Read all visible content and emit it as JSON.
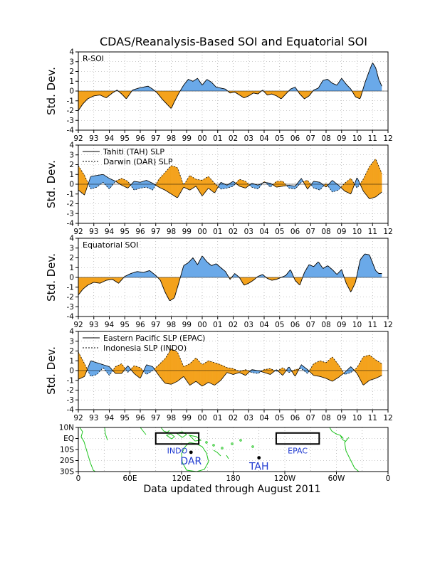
{
  "title": "CDAS/Reanalysis-Based SOI and Equatorial SOI",
  "footer": "Data updated through August 2011",
  "colors": {
    "positive": "#6aa9e9",
    "negative": "#f4a21c",
    "grid": "#999999",
    "land": "#1fc41f",
    "label": "#1f3ad1"
  },
  "chart_data": [
    {
      "type": "area",
      "panel_label": "R-SOI",
      "ylabel": "Std. Dev.",
      "ylim": [
        -4,
        4
      ],
      "yticks": [
        "4",
        "3",
        "2",
        "1",
        "0",
        "-1",
        "-2",
        "-3",
        "-4"
      ],
      "xlim": [
        1992.0,
        2012.0
      ],
      "xticks": [
        "92",
        "93",
        "94",
        "95",
        "96",
        "97",
        "98",
        "99",
        "00",
        "01",
        "02",
        "03",
        "04",
        "05",
        "06",
        "07",
        "08",
        "09",
        "10",
        "11",
        "12"
      ],
      "grid": true,
      "series": [
        {
          "x": [
            1992.0,
            1992.3,
            1992.6,
            1993.0,
            1993.4,
            1993.8,
            1994.2,
            1994.5,
            1994.8,
            1995.1,
            1995.5,
            1995.9,
            1996.2,
            1996.5,
            1996.8,
            1997.1,
            1997.4,
            1997.7,
            1998.0,
            1998.2,
            1998.5,
            1998.8,
            1999.1,
            1999.4,
            1999.7,
            2000.0,
            2000.3,
            2000.6,
            2000.9,
            2001.2,
            2001.5,
            2001.8,
            2002.1,
            2002.4,
            2002.7,
            2003.0,
            2003.3,
            2003.6,
            2003.9,
            2004.2,
            2004.5,
            2004.8,
            2005.1,
            2005.4,
            2005.7,
            2006.0,
            2006.3,
            2006.6,
            2006.9,
            2007.2,
            2007.5,
            2007.8,
            2008.1,
            2008.4,
            2008.7,
            2009.0,
            2009.3,
            2009.6,
            2009.9,
            2010.2,
            2010.5,
            2010.8,
            2011.0,
            2011.2,
            2011.4,
            2011.6
          ],
          "values": [
            -2.0,
            -1.3,
            -0.8,
            -0.5,
            -0.4,
            -0.7,
            -0.2,
            0.1,
            -0.3,
            -0.8,
            0.1,
            0.3,
            0.4,
            0.5,
            0.2,
            -0.2,
            -0.8,
            -1.3,
            -1.8,
            -1.1,
            -0.2,
            0.6,
            1.2,
            1.0,
            1.3,
            0.6,
            1.2,
            0.9,
            0.4,
            0.3,
            0.2,
            -0.2,
            -0.1,
            -0.4,
            -0.7,
            -0.5,
            -0.2,
            -0.3,
            0.1,
            -0.4,
            -0.3,
            -0.5,
            -0.8,
            -0.3,
            0.2,
            0.4,
            -0.3,
            -0.8,
            -0.5,
            0.1,
            0.3,
            1.1,
            1.2,
            0.8,
            0.6,
            1.3,
            0.7,
            0.2,
            -0.6,
            -0.8,
            0.8,
            2.1,
            2.9,
            2.4,
            1.2,
            0.5
          ]
        }
      ]
    },
    {
      "type": "area",
      "ylabel": "Std. Dev.",
      "ylim": [
        -4,
        4
      ],
      "yticks": [
        "4",
        "3",
        "2",
        "1",
        "0",
        "-1",
        "-2",
        "-3",
        "-4"
      ],
      "xlim": [
        1992.0,
        2012.0
      ],
      "xticks": [
        "92",
        "93",
        "94",
        "95",
        "96",
        "97",
        "98",
        "99",
        "00",
        "01",
        "02",
        "03",
        "04",
        "05",
        "06",
        "07",
        "08",
        "09",
        "10",
        "11",
        "12"
      ],
      "grid": true,
      "legend": {
        "position": "top-left"
      },
      "series": [
        {
          "name": "Tahiti (TAH) SLP",
          "line": "solid",
          "x": [
            1992.0,
            1992.4,
            1992.8,
            1993.2,
            1993.6,
            1994.0,
            1994.4,
            1994.8,
            1995.2,
            1995.6,
            1996.0,
            1996.4,
            1996.8,
            1997.2,
            1997.6,
            1998.0,
            1998.4,
            1998.8,
            1999.2,
            1999.6,
            2000.0,
            2000.4,
            2000.8,
            2001.2,
            2001.6,
            2002.0,
            2002.4,
            2002.8,
            2003.2,
            2003.6,
            2004.0,
            2004.4,
            2004.8,
            2005.2,
            2005.6,
            2006.0,
            2006.4,
            2006.8,
            2007.2,
            2007.6,
            2008.0,
            2008.4,
            2008.8,
            2009.2,
            2009.6,
            2010.0,
            2010.4,
            2010.8,
            2011.2,
            2011.6
          ],
          "values": [
            -0.6,
            -1.1,
            0.8,
            0.9,
            1.0,
            0.6,
            0.3,
            -0.1,
            -0.4,
            0.3,
            0.2,
            0.4,
            0.1,
            -0.3,
            -0.6,
            -1.0,
            -1.4,
            -0.3,
            -0.6,
            -0.2,
            -1.2,
            -0.4,
            -0.9,
            0.2,
            -0.1,
            0.3,
            -0.2,
            -0.4,
            0.1,
            -0.1,
            0.2,
            0.1,
            -0.3,
            -0.2,
            -0.1,
            -0.2,
            0.6,
            -0.5,
            0.3,
            0.2,
            -0.3,
            0.4,
            -0.1,
            -0.7,
            -1.0,
            0.7,
            -0.7,
            -1.5,
            -1.3,
            -0.8
          ]
        },
        {
          "name": "Darwin (DAR) SLP",
          "line": "dashed",
          "x": [
            1992.0,
            1992.4,
            1992.8,
            1993.2,
            1993.6,
            1994.0,
            1994.4,
            1994.8,
            1995.2,
            1995.6,
            1996.0,
            1996.4,
            1996.8,
            1997.2,
            1997.6,
            1998.0,
            1998.4,
            1998.8,
            1999.2,
            1999.6,
            2000.0,
            2000.4,
            2000.8,
            2001.2,
            2001.6,
            2002.0,
            2002.4,
            2002.8,
            2003.2,
            2003.6,
            2004.0,
            2004.4,
            2004.8,
            2005.2,
            2005.6,
            2006.0,
            2006.4,
            2006.8,
            2007.2,
            2007.6,
            2008.0,
            2008.4,
            2008.8,
            2009.2,
            2009.6,
            2010.0,
            2010.4,
            2010.8,
            2011.2,
            2011.6
          ],
          "values": [
            1.9,
            0.9,
            -0.5,
            -0.3,
            0.2,
            -0.5,
            0.3,
            0.6,
            0.3,
            -0.6,
            -0.4,
            -0.3,
            -0.6,
            0.5,
            1.2,
            1.9,
            1.7,
            -0.1,
            0.9,
            0.5,
            0.4,
            0.8,
            0.1,
            -0.5,
            -0.4,
            -0.2,
            0.5,
            0.3,
            -0.3,
            -0.5,
            0.3,
            -0.3,
            0.3,
            0.3,
            -0.4,
            -0.5,
            0.2,
            0.4,
            -0.4,
            -0.6,
            0.1,
            -0.8,
            -0.6,
            0.1,
            0.6,
            -0.4,
            0.5,
            1.8,
            2.6,
            1.1
          ]
        }
      ]
    },
    {
      "type": "area",
      "panel_label": "Equatorial SOI",
      "ylabel": "Std. Dev.",
      "ylim": [
        -4,
        4
      ],
      "yticks": [
        "4",
        "3",
        "2",
        "1",
        "0",
        "-1",
        "-2",
        "-3",
        "-4"
      ],
      "xlim": [
        1992.0,
        2012.0
      ],
      "xticks": [
        "92",
        "93",
        "94",
        "95",
        "96",
        "97",
        "98",
        "99",
        "00",
        "01",
        "02",
        "03",
        "04",
        "05",
        "06",
        "07",
        "08",
        "09",
        "10",
        "11",
        "12"
      ],
      "grid": true,
      "series": [
        {
          "x": [
            1992.0,
            1992.3,
            1992.6,
            1993.0,
            1993.4,
            1993.8,
            1994.2,
            1994.6,
            1995.0,
            1995.4,
            1995.8,
            1996.2,
            1996.6,
            1997.0,
            1997.3,
            1997.6,
            1997.9,
            1998.2,
            1998.5,
            1998.8,
            1999.1,
            1999.4,
            1999.7,
            2000.0,
            2000.3,
            2000.6,
            2000.9,
            2001.2,
            2001.5,
            2001.8,
            2002.1,
            2002.4,
            2002.7,
            2003.0,
            2003.3,
            2003.6,
            2003.9,
            2004.2,
            2004.5,
            2004.8,
            2005.1,
            2005.4,
            2005.7,
            2006.0,
            2006.3,
            2006.6,
            2006.9,
            2007.2,
            2007.5,
            2007.8,
            2008.1,
            2008.4,
            2008.7,
            2009.0,
            2009.3,
            2009.6,
            2009.9,
            2010.2,
            2010.5,
            2010.8,
            2011.0,
            2011.2,
            2011.4,
            2011.6
          ],
          "values": [
            -1.8,
            -1.2,
            -0.8,
            -0.5,
            -0.6,
            -0.3,
            -0.2,
            -0.6,
            0.1,
            0.4,
            0.6,
            0.5,
            0.7,
            0.2,
            -0.3,
            -1.5,
            -2.4,
            -2.1,
            -0.5,
            1.2,
            1.5,
            2.0,
            1.3,
            2.2,
            1.6,
            1.2,
            1.4,
            1.0,
            0.6,
            -0.2,
            0.4,
            0.0,
            -0.8,
            -0.6,
            -0.3,
            0.1,
            0.3,
            -0.1,
            -0.3,
            -0.2,
            0.0,
            0.2,
            0.8,
            -0.3,
            -0.8,
            0.5,
            1.3,
            1.1,
            1.6,
            0.9,
            1.2,
            0.8,
            0.3,
            0.8,
            -0.6,
            -1.5,
            -0.5,
            1.8,
            2.4,
            2.3,
            1.5,
            0.7,
            0.4,
            0.4
          ]
        }
      ]
    },
    {
      "type": "area",
      "ylabel": "Std. Dev.",
      "ylim": [
        -4,
        4
      ],
      "yticks": [
        "4",
        "3",
        "2",
        "1",
        "0",
        "-1",
        "-2",
        "-3",
        "-4"
      ],
      "xlim": [
        1992.0,
        2012.0
      ],
      "xticks": [
        "92",
        "93",
        "94",
        "95",
        "96",
        "97",
        "98",
        "99",
        "00",
        "01",
        "02",
        "03",
        "04",
        "05",
        "06",
        "07",
        "08",
        "09",
        "10",
        "11",
        "12"
      ],
      "grid": true,
      "legend": {
        "position": "top-left"
      },
      "series": [
        {
          "name": "Eastern Pacific SLP (EPAC)",
          "line": "solid",
          "x": [
            1992.0,
            1992.4,
            1992.8,
            1993.2,
            1993.6,
            1994.0,
            1994.4,
            1994.8,
            1995.2,
            1995.6,
            1996.0,
            1996.4,
            1996.8,
            1997.2,
            1997.6,
            1998.0,
            1998.4,
            1998.8,
            1999.2,
            1999.6,
            2000.0,
            2000.4,
            2000.8,
            2001.2,
            2001.6,
            2002.0,
            2002.4,
            2002.8,
            2003.2,
            2003.6,
            2004.0,
            2004.4,
            2004.8,
            2005.2,
            2005.6,
            2006.0,
            2006.4,
            2006.8,
            2007.2,
            2007.6,
            2008.0,
            2008.4,
            2008.8,
            2009.2,
            2009.6,
            2010.0,
            2010.4,
            2010.8,
            2011.2,
            2011.6
          ],
          "values": [
            -0.9,
            -0.6,
            1.0,
            0.8,
            0.6,
            0.4,
            -0.3,
            -0.3,
            0.5,
            -0.3,
            -0.8,
            0.6,
            0.4,
            -0.5,
            -1.3,
            -1.4,
            -1.1,
            -0.6,
            -1.5,
            -1.1,
            -1.6,
            -1.2,
            -1.5,
            -1.0,
            -0.2,
            -0.4,
            -0.2,
            -0.5,
            0.1,
            0.0,
            -0.2,
            -0.4,
            0.1,
            -0.5,
            0.4,
            -0.6,
            0.6,
            0.1,
            -0.5,
            -0.6,
            -0.8,
            -1.1,
            -0.7,
            -0.2,
            0.4,
            -0.3,
            -1.5,
            -1.0,
            -0.8,
            -0.5
          ]
        },
        {
          "name": "Indonesia SLP (INDO)",
          "line": "dashed",
          "x": [
            1992.0,
            1992.4,
            1992.8,
            1993.2,
            1993.6,
            1994.0,
            1994.4,
            1994.8,
            1995.2,
            1995.6,
            1996.0,
            1996.4,
            1996.8,
            1997.2,
            1997.6,
            1998.0,
            1998.4,
            1998.8,
            1999.2,
            1999.6,
            2000.0,
            2000.4,
            2000.8,
            2001.2,
            2001.6,
            2002.0,
            2002.4,
            2002.8,
            2003.2,
            2003.6,
            2004.0,
            2004.4,
            2004.8,
            2005.2,
            2005.6,
            2006.0,
            2006.4,
            2006.8,
            2007.2,
            2007.6,
            2008.0,
            2008.4,
            2008.8,
            2009.2,
            2009.6,
            2010.0,
            2010.4,
            2010.8,
            2011.2,
            2011.6
          ],
          "values": [
            1.9,
            0.7,
            -0.6,
            -0.4,
            0.3,
            -0.5,
            0.4,
            0.7,
            -0.2,
            0.5,
            0.3,
            -0.4,
            0.0,
            0.6,
            1.2,
            2.2,
            1.9,
            0.4,
            0.7,
            1.3,
            0.6,
            1.0,
            0.8,
            0.6,
            0.3,
            0.2,
            -0.1,
            0.1,
            -0.2,
            -0.3,
            0.1,
            0.2,
            -0.1,
            0.3,
            -0.2,
            0.1,
            0.2,
            -0.3,
            0.7,
            1.0,
            0.8,
            1.4,
            0.6,
            -0.4,
            -0.2,
            0.3,
            1.4,
            1.6,
            1.1,
            0.7
          ]
        }
      ]
    }
  ],
  "map": {
    "lat_ticks": [
      "10N",
      "EQ",
      "10S",
      "20S",
      "30S"
    ],
    "lon_ticks": [
      "0",
      "60E",
      "120E",
      "180",
      "120W",
      "60W",
      "0"
    ],
    "regions": [
      {
        "label": "INDO",
        "lon": [
          90,
          140
        ],
        "lat": [
          5,
          -5
        ]
      },
      {
        "label": "EPAC",
        "lon": [
          230,
          280
        ],
        "lat": [
          5,
          -5
        ]
      }
    ],
    "stations": [
      {
        "label": "DAR",
        "lon": 131,
        "lat": -12.5
      },
      {
        "label": "TAH",
        "lon": 210,
        "lat": -17.5
      }
    ]
  }
}
